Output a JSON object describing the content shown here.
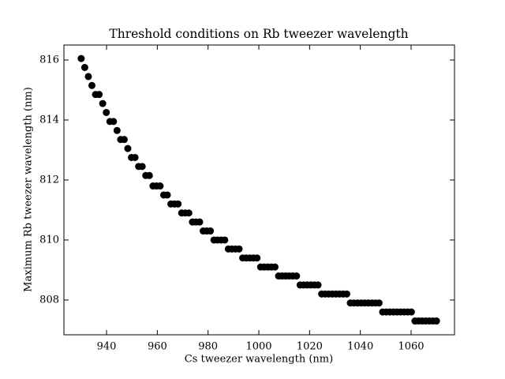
{
  "chart_data": {
    "type": "scatter",
    "title": "Threshold conditions on Rb tweezer wavelength",
    "xlabel": "Cs tweezer wavelength (nm)",
    "ylabel": "Maximum Rb tweezer wavelength (nm)",
    "color": "#000000",
    "x": [
      930.0,
      931.41,
      932.83,
      934.24,
      935.66,
      937.07,
      938.48,
      939.9,
      941.31,
      942.73,
      944.14,
      945.56,
      946.97,
      948.38,
      949.8,
      951.21,
      952.63,
      954.04,
      955.45,
      956.87,
      958.28,
      959.7,
      961.11,
      962.53,
      963.94,
      965.35,
      966.77,
      968.18,
      969.6,
      971.01,
      972.42,
      973.84,
      975.25,
      976.67,
      978.08,
      979.49,
      980.91,
      982.32,
      983.74,
      985.15,
      986.57,
      987.98,
      989.39,
      990.81,
      992.22,
      993.64,
      995.05,
      996.46,
      997.88,
      999.29,
      1000.71,
      1002.12,
      1003.54,
      1004.95,
      1006.36,
      1007.78,
      1009.19,
      1010.61,
      1012.02,
      1013.43,
      1014.85,
      1016.26,
      1017.68,
      1019.09,
      1020.51,
      1021.92,
      1023.33,
      1024.75,
      1026.16,
      1027.58,
      1028.99,
      1030.4,
      1031.82,
      1033.23,
      1034.65,
      1036.06,
      1037.47,
      1038.89,
      1040.3,
      1041.72,
      1043.13,
      1044.55,
      1045.96,
      1047.37,
      1048.79,
      1050.2,
      1051.62,
      1053.03,
      1054.44,
      1055.86,
      1057.27,
      1058.69,
      1060.1,
      1061.52,
      1062.93,
      1064.34,
      1065.76,
      1067.17,
      1068.59,
      1070.0
    ],
    "values": [
      816.05,
      815.75,
      815.45,
      815.15,
      814.85,
      814.85,
      814.55,
      814.25,
      813.95,
      813.95,
      813.65,
      813.35,
      813.35,
      813.05,
      812.75,
      812.75,
      812.45,
      812.45,
      812.15,
      812.15,
      811.8,
      811.8,
      811.8,
      811.5,
      811.5,
      811.2,
      811.2,
      811.2,
      810.9,
      810.9,
      810.9,
      810.6,
      810.6,
      810.6,
      810.3,
      810.3,
      810.3,
      810.0,
      810.0,
      810.0,
      810.0,
      809.7,
      809.7,
      809.7,
      809.7,
      809.4,
      809.4,
      809.4,
      809.4,
      809.4,
      809.1,
      809.1,
      809.1,
      809.1,
      809.1,
      808.8,
      808.8,
      808.8,
      808.8,
      808.8,
      808.8,
      808.5,
      808.5,
      808.5,
      808.5,
      808.5,
      808.5,
      808.2,
      808.2,
      808.2,
      808.2,
      808.2,
      808.2,
      808.2,
      808.2,
      807.9,
      807.9,
      807.9,
      807.9,
      807.9,
      807.9,
      807.9,
      807.9,
      807.9,
      807.6,
      807.6,
      807.6,
      807.6,
      807.6,
      807.6,
      807.6,
      807.6,
      807.6,
      807.3,
      807.3,
      807.3,
      807.3,
      807.3,
      807.3,
      807.3
    ],
    "xlim": [
      923.2,
      1077.1
    ],
    "xticks": [
      940,
      960,
      980,
      1000,
      1020,
      1040,
      1060
    ],
    "ylim": [
      806.84,
      816.5
    ],
    "yticks": [
      808,
      810,
      812,
      814,
      816
    ]
  }
}
